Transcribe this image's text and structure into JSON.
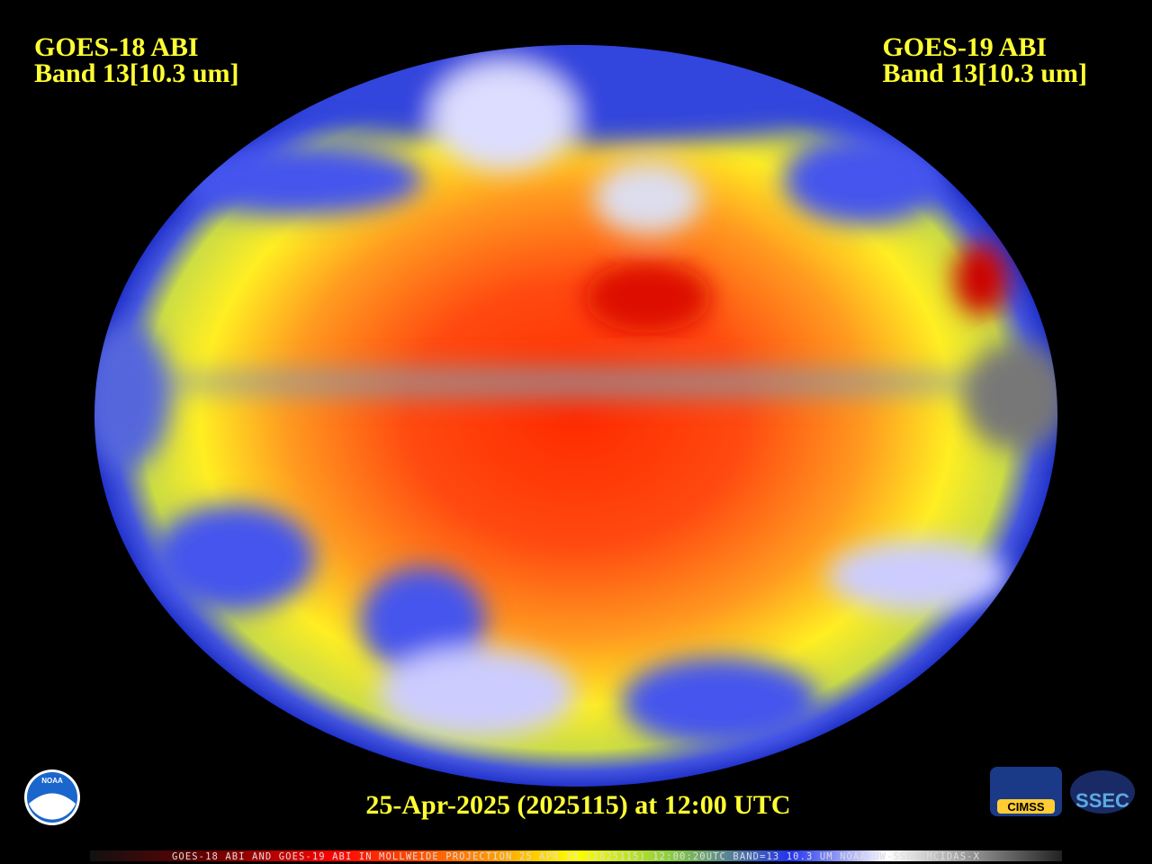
{
  "header": {
    "left": {
      "line1": "GOES-18 ABI",
      "line2": "Band 13[10.3 um]"
    },
    "right": {
      "line1": "GOES-19 ABI",
      "line2": "Band 13[10.3 um]"
    }
  },
  "timestamp": "25-Apr-2025 (2025115) at 12:00 UTC",
  "footer": "GOES-18 ABI AND GOES-19 ABI IN MOLLWEIDE PROJECTION 25 APR 25 (2025115) 12:00:20UTC BAND=13 10.3 UM NOAA UW-SSEC MCIDAS-X",
  "logos": {
    "noaa": "NOAA",
    "cimss": "CIMSS",
    "ssec": "SSEC"
  }
}
